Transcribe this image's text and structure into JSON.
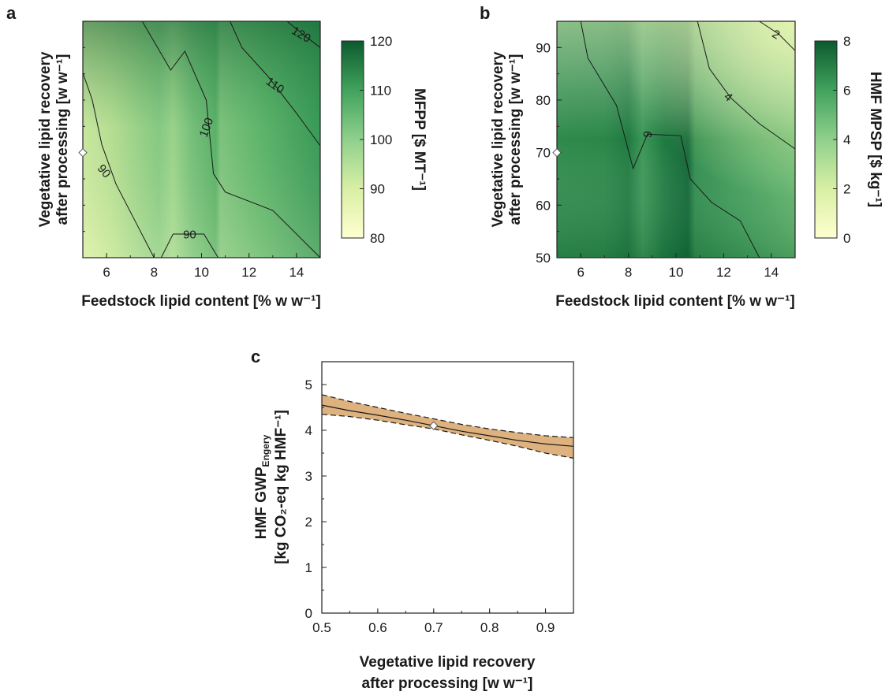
{
  "panels": {
    "a": "a",
    "b": "b",
    "c": "c"
  },
  "chart_data": [
    {
      "panel": "a",
      "type": "heatmap",
      "xlabel": "Feedstock lipid content [% w w⁻¹]",
      "ylabel_line1": "Vegetative lipid recovery",
      "ylabel_line2": "after processing [w w⁻¹]",
      "xlim": [
        5,
        15
      ],
      "ylim": [
        50,
        95
      ],
      "xticks": [
        "6",
        "8",
        "10",
        "12",
        "14"
      ],
      "colorbar": {
        "label": "MFPP [$ MT⁻¹]",
        "range": [
          80,
          120
        ],
        "ticks": [
          "80",
          "90",
          "100",
          "110",
          "120"
        ],
        "colors": [
          "#ffffd0",
          "#d8efa4",
          "#8fd08c",
          "#41a35d",
          "#0c5a2e"
        ]
      },
      "baseline_marker": {
        "x": 5,
        "y": 70
      },
      "contours": [
        {
          "level": "90",
          "label_at": {
            "x": 5.9,
            "y": 66.5
          },
          "label_rotate": 50,
          "points": [
            [
              5,
              85.2
            ],
            [
              5.4,
              80
            ],
            [
              5.8,
              71.5
            ],
            [
              6.4,
              64
            ],
            [
              7.2,
              57
            ],
            [
              8,
              50
            ]
          ]
        },
        {
          "level": "90",
          "label_at": {
            "x": 9.5,
            "y": 54.4
          },
          "label_rotate": 0,
          "points": [
            [
              8.3,
              50
            ],
            [
              8.8,
              54.5
            ],
            [
              10.1,
              54.5
            ],
            [
              10.7,
              50
            ]
          ]
        },
        {
          "level": "100",
          "label_at": {
            "x": 10.2,
            "y": 74.8
          },
          "label_rotate": -70,
          "points": [
            [
              7.5,
              95
            ],
            [
              8.7,
              85.7
            ],
            [
              9.3,
              89.3
            ],
            [
              10.2,
              80
            ],
            [
              10.5,
              66
            ],
            [
              11,
              62.5
            ],
            [
              13,
              59
            ],
            [
              15,
              50
            ]
          ]
        },
        {
          "level": "110",
          "label_at": {
            "x": 13.1,
            "y": 82.8
          },
          "label_rotate": 35,
          "points": [
            [
              11.2,
              95
            ],
            [
              11.7,
              90
            ],
            [
              12.8,
              84.5
            ],
            [
              14,
              77.5
            ],
            [
              15,
              71.3
            ]
          ]
        },
        {
          "level": "120",
          "label_at": {
            "x": 14.2,
            "y": 92.5
          },
          "label_rotate": 30,
          "points": [
            [
              13.6,
              95
            ],
            [
              14.3,
              92.4
            ],
            [
              15,
              90
            ]
          ]
        }
      ]
    },
    {
      "panel": "b",
      "type": "heatmap",
      "xlabel": "Feedstock lipid content [% w w⁻¹]",
      "ylabel_line1": "Vegetative lipid recovery",
      "ylabel_line2": "after processing [w w⁻¹]",
      "xlim": [
        5,
        15
      ],
      "ylim": [
        50,
        95
      ],
      "xticks": [
        "6",
        "8",
        "10",
        "12",
        "14"
      ],
      "yticks": [
        "50",
        "60",
        "70",
        "80",
        "90"
      ],
      "colorbar": {
        "label": "HMF MPSP [$ kg⁻¹]",
        "range": [
          0,
          8
        ],
        "ticks": [
          "0",
          "2",
          "4",
          "6",
          "8"
        ],
        "colors": [
          "#ffffd0",
          "#d8efa4",
          "#8fd08c",
          "#41a35d",
          "#0c5a2e"
        ]
      },
      "baseline_marker": {
        "x": 5,
        "y": 70
      },
      "contours": [
        {
          "level": "6",
          "label_at": {
            "x": 8.8,
            "y": 73.5
          },
          "label_rotate": 100,
          "points": [
            [
              6,
              95
            ],
            [
              6.3,
              88
            ],
            [
              7.5,
              79
            ],
            [
              8.2,
              67
            ],
            [
              8.8,
              73.5
            ],
            [
              10.2,
              73.2
            ],
            [
              10.6,
              65
            ],
            [
              11.5,
              60.5
            ],
            [
              12.7,
              57
            ],
            [
              13.5,
              50
            ]
          ]
        },
        {
          "level": "4",
          "label_at": {
            "x": 12.2,
            "y": 80.6
          },
          "label_rotate": 40,
          "points": [
            [
              10.9,
              95
            ],
            [
              11.4,
              86
            ],
            [
              12.3,
              80.4
            ],
            [
              13.5,
              75.5
            ],
            [
              15,
              70.7
            ]
          ]
        },
        {
          "level": "2",
          "label_at": {
            "x": 14.2,
            "y": 92.5
          },
          "label_rotate": 30,
          "points": [
            [
              13.5,
              95
            ],
            [
              14.3,
              92.6
            ],
            [
              15,
              89.4
            ]
          ]
        }
      ]
    },
    {
      "panel": "c",
      "type": "line",
      "xlabel_line1": "Vegetative lipid recovery",
      "xlabel_line2": "after processing [w w⁻¹]",
      "ylabel_line1": "HMF GWP",
      "ylabel_sub": "Engery",
      "ylabel_line2": "[kg CO₂-eq kg HMF⁻¹]",
      "xlim": [
        0.5,
        0.95
      ],
      "ylim": [
        0,
        5.5
      ],
      "xticks": [
        "0.5",
        "0.6",
        "0.7",
        "0.8",
        "0.9"
      ],
      "yticks": [
        "0",
        "1",
        "2",
        "3",
        "4",
        "5"
      ],
      "x": [
        0.5,
        0.55,
        0.6,
        0.65,
        0.7,
        0.75,
        0.8,
        0.85,
        0.9,
        0.95
      ],
      "series": [
        {
          "role": "median",
          "values": [
            4.55,
            4.43,
            4.33,
            4.22,
            4.1,
            3.98,
            3.88,
            3.78,
            3.7,
            3.65
          ]
        },
        {
          "role": "upper",
          "values": [
            4.78,
            4.63,
            4.5,
            4.37,
            4.25,
            4.13,
            4.03,
            3.95,
            3.88,
            3.84
          ]
        },
        {
          "role": "lower",
          "values": [
            4.35,
            4.3,
            4.22,
            4.12,
            4.03,
            3.9,
            3.78,
            3.65,
            3.5,
            3.39
          ]
        }
      ],
      "band_color": "#ddb27f",
      "baseline_marker": {
        "x": 0.7,
        "y": 4.1
      }
    }
  ]
}
